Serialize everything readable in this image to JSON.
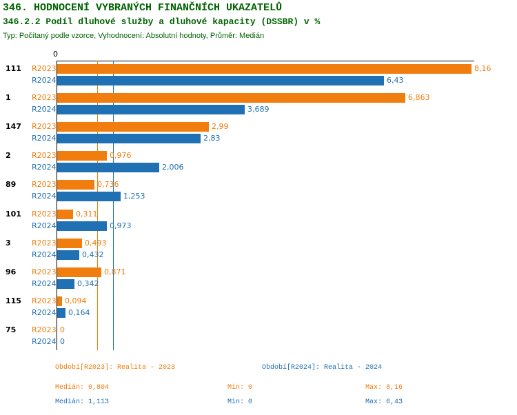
{
  "header": {
    "title": "346. HODNOCENÍ VYBRANÝCH FINANČNÍCH UKAZATELŮ",
    "subtitle": "346.2.2 Podíl dluhové služby a dluhové kapacity (DSSBR) v %",
    "meta": "Typ: Počítaný podle vzorce, Vyhodnocení: Absolutní hodnoty, Průměr: Medián"
  },
  "chart_data": {
    "type": "bar",
    "orientation": "horizontal",
    "categories": [
      "111",
      "1",
      "147",
      "2",
      "89",
      "101",
      "3",
      "96",
      "115",
      "75"
    ],
    "series": [
      {
        "name": "R2023",
        "color": "#F07D0E",
        "values": [
          8.16,
          6.863,
          2.99,
          0.976,
          0.736,
          0.311,
          0.493,
          0.871,
          0.094,
          0
        ]
      },
      {
        "name": "R2024",
        "color": "#2070B4",
        "values": [
          6.43,
          3.689,
          2.83,
          2.006,
          1.253,
          0.973,
          0.432,
          0.342,
          0.164,
          0
        ]
      }
    ],
    "xlim": [
      0,
      8.16
    ],
    "axis_zero_label": "0",
    "grid": false,
    "legend_position": "bottom",
    "reference_lines": [
      {
        "label": "median-r2023",
        "value": 0.804,
        "color": "#F07D0E"
      },
      {
        "label": "median-r2024",
        "value": 1.113,
        "color": "#2070B4"
      }
    ]
  },
  "footer": {
    "period_2023": "Období[R2023]: Realita - 2023",
    "period_2024": "Období[R2024]: Realita - 2024",
    "stats_2023": {
      "median": "Medián: 0,804",
      "min": "Min: 0",
      "max": "Max: 8,16"
    },
    "stats_2024": {
      "median": "Medián: 1,113",
      "min": "Min: 0",
      "max": "Max: 6,43"
    }
  },
  "colors": {
    "orange": "#F07D0E",
    "blue": "#2070B4",
    "green": "#006400",
    "axis": "#000000"
  }
}
